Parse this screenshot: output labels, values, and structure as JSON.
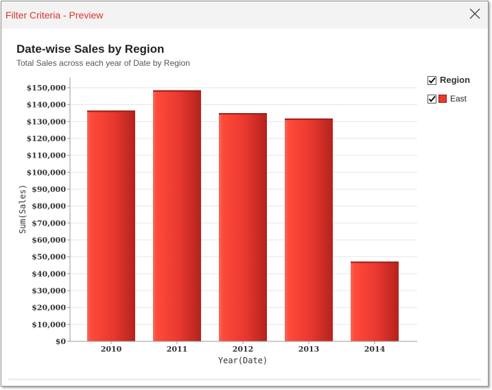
{
  "window": {
    "title": "Filter Criteria - Preview"
  },
  "chart_data": {
    "type": "bar",
    "title": "Date-wise Sales by Region",
    "subtitle": "Total Sales across each year of Date by Region",
    "xlabel": "Year(Date)",
    "ylabel": "Sum(Sales)",
    "categories": [
      "2010",
      "2011",
      "2012",
      "2013",
      "2014"
    ],
    "series": [
      {
        "name": "East",
        "values": [
          136500,
          148500,
          135000,
          131800,
          47200
        ]
      }
    ],
    "ylim": [
      0,
      150000
    ],
    "ytick_step": 10000,
    "ytick_labels": [
      "$0",
      "$10,000",
      "$20,000",
      "$30,000",
      "$40,000",
      "$50,000",
      "$60,000",
      "$70,000",
      "$80,000",
      "$90,000",
      "$100,000",
      "$110,000",
      "$120,000",
      "$130,000",
      "$140,000",
      "$150,000"
    ],
    "grid": true,
    "legend": {
      "title": "Region",
      "position": "right",
      "items": [
        {
          "label": "East",
          "color": "#e8382f",
          "checked": true
        }
      ]
    },
    "colors": {
      "bar": "#e8382f",
      "bar_dark": "#b3231c",
      "bar_light": "#ff5a48"
    }
  }
}
